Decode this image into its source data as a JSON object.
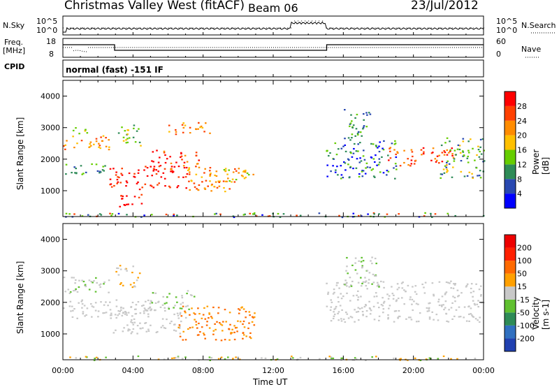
{
  "header": {
    "title": "Christmas Valley West (fitACF)",
    "beam": "Beam 06",
    "date": "23/Jul/2012"
  },
  "top_panels": {
    "nsky_label": "N.Sky",
    "nsearch_label": "N.Search",
    "freq_label_line1": "Freq.",
    "freq_label_line2": "[MHz]",
    "nave_label": "Nave",
    "cpid_label": "CPID",
    "cpid_text": "normal (fast) -151 IF",
    "noise_ticks_left": [
      "10^5",
      "10^0"
    ],
    "noise_ticks_right": [
      "10^5",
      "10^0"
    ],
    "freq_ticks": [
      "18",
      "8"
    ],
    "nave_ticks": [
      "60",
      "0"
    ]
  },
  "chart_data": [
    {
      "type": "heatmap",
      "name": "power",
      "ylabel": "Slant Range [km]",
      "ylim": [
        180,
        4500
      ],
      "yticks": [
        1000,
        2000,
        3000,
        4000
      ],
      "xlim": [
        0,
        24
      ],
      "colorbar": {
        "title": "Power [dB]",
        "ticks": [
          "28",
          "24",
          "20",
          "16",
          "12",
          "8",
          "4"
        ],
        "colors": [
          "#0000ff",
          "#2848b0",
          "#2e8b57",
          "#66cd00",
          "#ffc000",
          "#ff8c00",
          "#ff4000",
          "#ff0000"
        ]
      }
    },
    {
      "type": "heatmap",
      "name": "velocity",
      "ylabel": "Slant Range [km]",
      "ylim": [
        180,
        4500
      ],
      "yticks": [
        1000,
        2000,
        3000,
        4000
      ],
      "xlim": [
        0,
        24
      ],
      "xlabel": "Time UT",
      "xticks": [
        "00:00",
        "04:00",
        "08:00",
        "12:00",
        "16:00",
        "20:00",
        "00:00"
      ],
      "colorbar": {
        "title": "Velocity [m s-1]",
        "ticks": [
          "200",
          "100",
          "50",
          "15",
          "-15",
          "-50",
          "-100",
          "-200"
        ],
        "colors": [
          "#2040b0",
          "#3070c0",
          "#2e8b57",
          "#60c030",
          "#c8c8c8",
          "#ffa000",
          "#ff6a00",
          "#ff2000",
          "#ee0000"
        ]
      }
    }
  ]
}
